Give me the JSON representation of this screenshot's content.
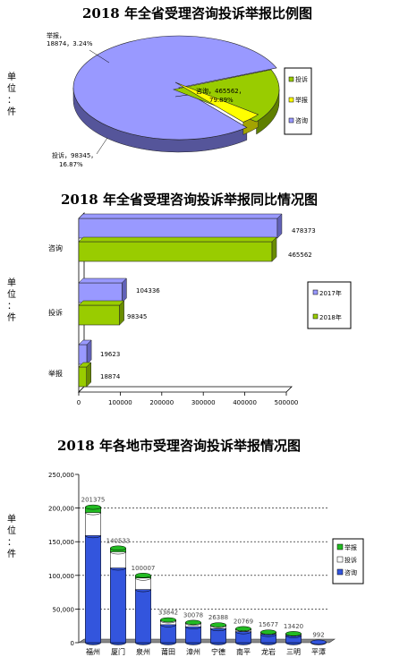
{
  "chart1": {
    "title": "2018 年全省受理咨询投诉举报比例图",
    "unit": [
      "单",
      "位",
      "：",
      "件"
    ],
    "slices": [
      {
        "name": "咨询",
        "value": 465562,
        "label_name": "咨询，465562，",
        "label_pct": "79.89%",
        "color": "#9999ff",
        "side": "#55559a"
      },
      {
        "name": "投诉",
        "value": 98345,
        "label_name": "投诉，98345，",
        "label_pct": "16.87%",
        "color": "#99cc00",
        "side": "#5f7f00"
      },
      {
        "name": "举报",
        "value": 18874,
        "label_name": "举报，",
        "label_pct": "18874，3.24%",
        "color": "#ffff00",
        "side": "#a3a300"
      }
    ],
    "legend": [
      {
        "name": "投诉",
        "color": "#99cc00"
      },
      {
        "name": "举报",
        "color": "#ffff00"
      },
      {
        "name": "咨询",
        "color": "#9999ff"
      }
    ]
  },
  "chart2": {
    "title": "2018 年全省受理咨询投诉举报同比情况图",
    "unit": [
      "单",
      "位",
      "：",
      "件"
    ],
    "categories": [
      "咨询",
      "投诉",
      "举报"
    ],
    "series": [
      {
        "name": "2017年",
        "values": [
          478373,
          104336,
          19623
        ],
        "color": "#9999ff",
        "dark": "#6262b8"
      },
      {
        "name": "2018年",
        "values": [
          465562,
          98345,
          18874
        ],
        "color": "#99cc00",
        "dark": "#6a8d00"
      }
    ],
    "xticks": [
      "0",
      "100000",
      "200000",
      "300000",
      "400000",
      "500000"
    ],
    "xlim": [
      0,
      500000
    ]
  },
  "chart3": {
    "title": "2018 年各地市受理咨询投诉举报情况图",
    "unit": [
      "单",
      "位",
      "：",
      "件"
    ],
    "categories": [
      "福州",
      "厦门",
      "泉州",
      "莆田",
      "漳州",
      "宁德",
      "南平",
      "龙岩",
      "三明",
      "平潭"
    ],
    "totals": [
      "201375",
      "140533",
      "100007",
      "33842",
      "30078",
      "26388",
      "20769",
      "15677",
      "13420",
      "992"
    ],
    "values_total": [
      201375,
      140533,
      100007,
      33842,
      30078,
      26388,
      20769,
      15677,
      13420,
      992
    ],
    "yticks": [
      "0",
      "50,000",
      "100,000",
      "150,000",
      "200,000",
      "250,000"
    ],
    "ylim": [
      0,
      250000
    ],
    "legend": [
      {
        "name": "举报",
        "color": "#22bb22"
      },
      {
        "name": "投诉",
        "color": "#ffffff"
      },
      {
        "name": "咨询",
        "color": "#3355dd"
      }
    ]
  }
}
